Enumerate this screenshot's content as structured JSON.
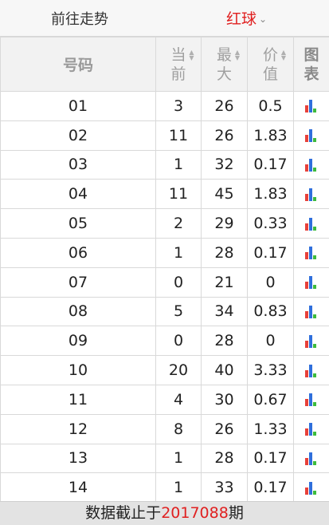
{
  "topbar": {
    "nav_label": "前往走势",
    "ball_type": "红球",
    "chevron_icon": "chevron-down-icon"
  },
  "table": {
    "headers": {
      "number": "号码",
      "current_top": "当",
      "current_bottom": "前",
      "max_top": "最",
      "max_bottom": "大",
      "value_top": "价",
      "value_bottom": "值",
      "chart_top": "图",
      "chart_bottom": "表"
    },
    "chart_icon": "bar-chart-icon",
    "rows": [
      {
        "number": "01",
        "current": "3",
        "max": "26",
        "value": "0.5"
      },
      {
        "number": "02",
        "current": "11",
        "max": "26",
        "value": "1.83"
      },
      {
        "number": "03",
        "current": "1",
        "max": "32",
        "value": "0.17"
      },
      {
        "number": "04",
        "current": "11",
        "max": "45",
        "value": "1.83"
      },
      {
        "number": "05",
        "current": "2",
        "max": "29",
        "value": "0.33"
      },
      {
        "number": "06",
        "current": "1",
        "max": "28",
        "value": "0.17"
      },
      {
        "number": "07",
        "current": "0",
        "max": "21",
        "value": "0"
      },
      {
        "number": "08",
        "current": "5",
        "max": "34",
        "value": "0.83"
      },
      {
        "number": "09",
        "current": "0",
        "max": "28",
        "value": "0"
      },
      {
        "number": "10",
        "current": "20",
        "max": "40",
        "value": "3.33"
      },
      {
        "number": "11",
        "current": "4",
        "max": "30",
        "value": "0.67"
      },
      {
        "number": "12",
        "current": "8",
        "max": "26",
        "value": "1.33"
      },
      {
        "number": "13",
        "current": "1",
        "max": "28",
        "value": "0.17"
      },
      {
        "number": "14",
        "current": "1",
        "max": "33",
        "value": "0.17"
      }
    ]
  },
  "footer": {
    "prefix": "数据截止于",
    "issue": "2017088",
    "suffix": "期"
  }
}
